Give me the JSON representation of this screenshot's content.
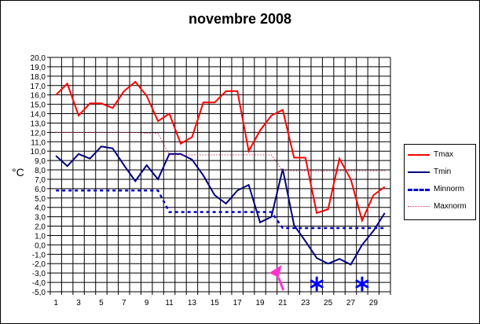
{
  "chart_data": {
    "type": "line",
    "title": "novembre 2008",
    "ylabel": "°C",
    "xlabel": "",
    "ylim": [
      -5,
      20
    ],
    "xlim": [
      1,
      30
    ],
    "ytick_labels": [
      "20,0",
      "19,0",
      "18,0",
      "17,0",
      "16,0",
      "15,0",
      "14,0",
      "13,0",
      "12,0",
      "11,0",
      "10,0",
      "9,0",
      "8,0",
      "7,0",
      "6,0",
      "5,0",
      "4,0",
      "3,0",
      "2,0",
      "1,0",
      "0,0",
      "-1,0",
      "-2,0",
      "-3,0",
      "-4,0",
      "-5,0"
    ],
    "xtick_labels": [
      "1",
      "3",
      "5",
      "7",
      "9",
      "11",
      "13",
      "15",
      "17",
      "19",
      "21",
      "23",
      "25",
      "27",
      "29"
    ],
    "grid": true,
    "legend_position": "right",
    "x": [
      1,
      2,
      3,
      4,
      5,
      6,
      7,
      8,
      9,
      10,
      11,
      12,
      13,
      14,
      15,
      16,
      17,
      18,
      19,
      20,
      21,
      22,
      23,
      24,
      25,
      26,
      27,
      28,
      29,
      30
    ],
    "series": [
      {
        "name": "Tmax",
        "color": "#ff0000",
        "style": "solid",
        "values": [
          16.0,
          17.2,
          13.8,
          15.1,
          15.1,
          14.6,
          16.4,
          17.4,
          15.9,
          13.2,
          14.0,
          10.8,
          11.5,
          15.2,
          15.2,
          16.4,
          16.4,
          10.0,
          12.2,
          13.8,
          14.4,
          9.3,
          9.3,
          3.4,
          3.8,
          9.2,
          7.0,
          2.6,
          5.3,
          6.2
        ]
      },
      {
        "name": "Tmin",
        "color": "#000080",
        "style": "solid",
        "values": [
          9.5,
          8.4,
          9.7,
          9.2,
          10.5,
          10.3,
          8.5,
          6.8,
          8.5,
          7.0,
          9.7,
          9.7,
          9.1,
          7.4,
          5.3,
          4.4,
          5.8,
          6.4,
          2.4,
          3.0,
          8.1,
          2.1,
          0.4,
          -1.4,
          -2.0,
          -1.5,
          -2.1,
          0.0,
          1.5,
          3.4
        ]
      },
      {
        "name": "Minnorm",
        "color": "#0000cc",
        "style": "dashed",
        "values": [
          5.8,
          5.8,
          5.8,
          5.8,
          5.8,
          5.8,
          5.8,
          5.8,
          5.8,
          5.8,
          3.5,
          3.5,
          3.5,
          3.5,
          3.5,
          3.5,
          3.5,
          3.5,
          3.5,
          3.5,
          1.8,
          1.8,
          1.8,
          1.8,
          1.8,
          1.8,
          1.8,
          1.8,
          1.8,
          1.8
        ]
      },
      {
        "name": "Maxnorm",
        "color": "#cc3366",
        "style": "dotted",
        "values": [
          12.0,
          12.0,
          12.0,
          12.0,
          12.0,
          12.0,
          12.0,
          12.0,
          11.9,
          11.9,
          9.6,
          9.6,
          9.6,
          9.6,
          9.6,
          9.6,
          9.6,
          9.6,
          9.6,
          9.6,
          7.9,
          7.9,
          7.9,
          7.9,
          7.9,
          7.9,
          7.9,
          7.9,
          7.9,
          7.9
        ]
      }
    ],
    "markers": [
      {
        "icon": "wind-flag-icon",
        "x": 20.5,
        "color": "#ff33cc"
      },
      {
        "icon": "snowflake-icon",
        "x": 24,
        "color": "#0000ff"
      },
      {
        "icon": "snowflake-icon",
        "x": 28,
        "color": "#0000ff"
      }
    ]
  }
}
